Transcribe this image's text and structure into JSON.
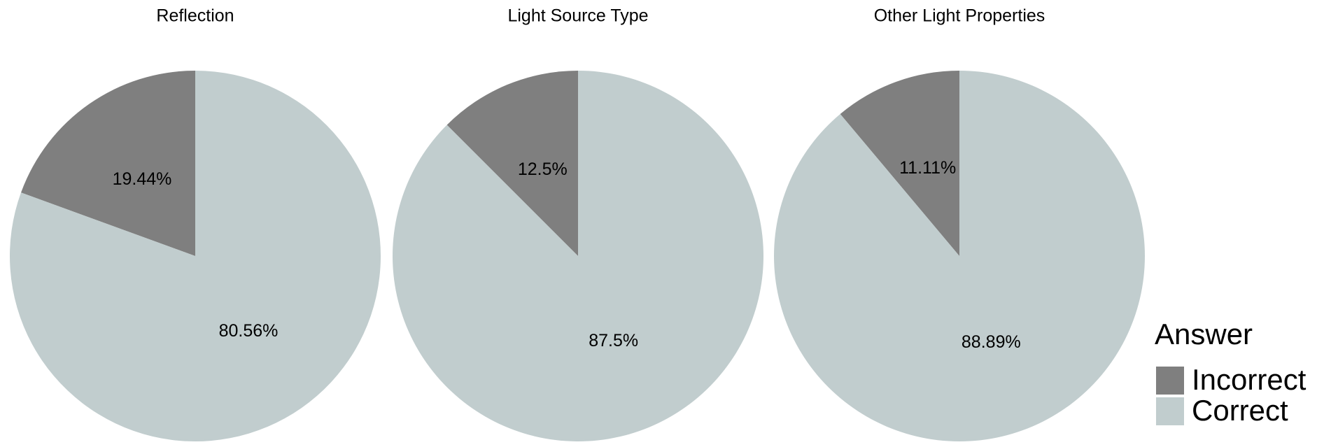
{
  "chart_data": [
    {
      "type": "pie",
      "title": "Reflection",
      "categories": [
        "Incorrect",
        "Correct"
      ],
      "values": [
        19.44,
        80.56
      ],
      "value_labels": [
        "19.44%",
        "80.56%"
      ],
      "colors": [
        "#7f7f7f",
        "#c1cdce"
      ]
    },
    {
      "type": "pie",
      "title": "Light Source Type",
      "categories": [
        "Incorrect",
        "Correct"
      ],
      "values": [
        12.5,
        87.5
      ],
      "value_labels": [
        "12.5%",
        "87.5%"
      ],
      "colors": [
        "#7f7f7f",
        "#c1cdce"
      ]
    },
    {
      "type": "pie",
      "title": "Other Light Properties",
      "categories": [
        "Incorrect",
        "Correct"
      ],
      "values": [
        11.11,
        88.89
      ],
      "value_labels": [
        "11.11%",
        "88.89%"
      ],
      "colors": [
        "#7f7f7f",
        "#c1cdce"
      ]
    }
  ],
  "legend": {
    "title": "Answer"
  }
}
